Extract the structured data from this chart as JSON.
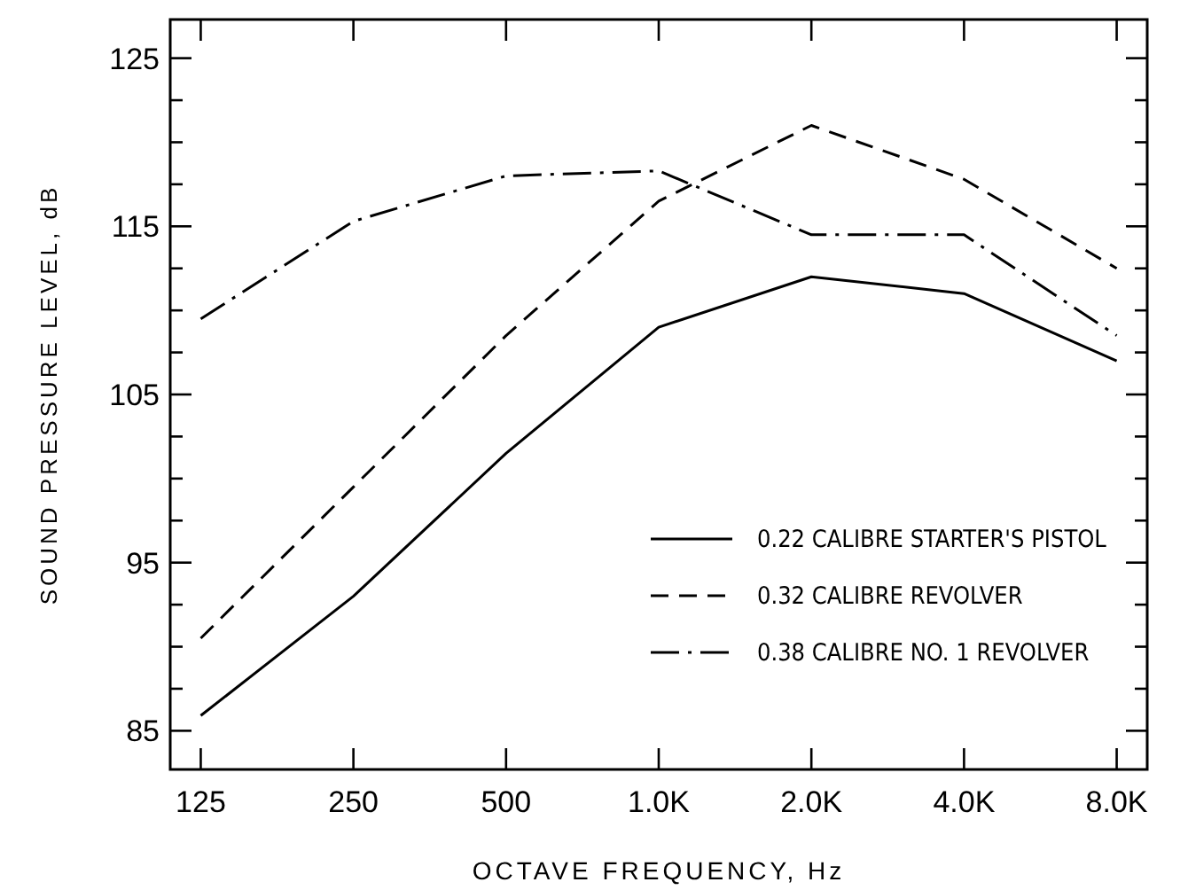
{
  "chart_data": {
    "type": "line",
    "xlabel": "OCTAVE FREQUENCY, Hz",
    "ylabel": "SOUND PRESSURE LEVEL, dB",
    "categories": [
      "125",
      "250",
      "500",
      "1.0K",
      "2.0K",
      "4.0K",
      "8.0K"
    ],
    "series": [
      {
        "name": "0.22 CALIBRE STARTER'S PISTOL",
        "color": "#000000",
        "line_style": "solid",
        "values": [
          85.9,
          93,
          101.5,
          109,
          112,
          111,
          107
        ]
      },
      {
        "name": "0.32 CALIBRE REVOLVER",
        "color": "#000000",
        "line_style": "dashed",
        "values": [
          90.5,
          99.5,
          108.5,
          116.5,
          121,
          117.8,
          112.5
        ]
      },
      {
        "name": "0.38 CALIBRE NO. 1 REVOLVER",
        "color": "#000000",
        "line_style": "dashdot",
        "values": [
          109.5,
          115.3,
          118,
          118.3,
          114.5,
          114.5,
          108.5
        ]
      }
    ],
    "ylim": [
      82.7,
      127.3
    ],
    "yticks": [
      {
        "value": 85,
        "label": "85"
      },
      {
        "value": 87.5,
        "label": null
      },
      {
        "value": 90,
        "label": null
      },
      {
        "value": 92.5,
        "label": null
      },
      {
        "value": 95,
        "label": "95"
      },
      {
        "value": 97.5,
        "label": null
      },
      {
        "value": 100,
        "label": null
      },
      {
        "value": 102.5,
        "label": null
      },
      {
        "value": 105,
        "label": "105"
      },
      {
        "value": 107.5,
        "label": null
      },
      {
        "value": 110,
        "label": null
      },
      {
        "value": 112.5,
        "label": null
      },
      {
        "value": 115,
        "label": "115"
      },
      {
        "value": 117.5,
        "label": null
      },
      {
        "value": 120,
        "label": null
      },
      {
        "value": 122.5,
        "label": null
      },
      {
        "value": 125,
        "label": "125"
      }
    ],
    "grid": false,
    "legend": "bottom right",
    "marker": "none"
  }
}
